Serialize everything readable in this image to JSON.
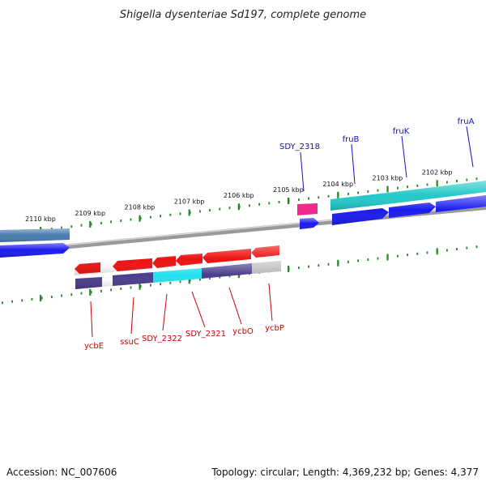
{
  "title": "Shigella dysenteriae Sd197, complete genome",
  "footer": {
    "accession": "Accession: NC_007606",
    "summary": "Topology: circular; Length: 4,369,232 bp; Genes: 4,377"
  },
  "colors": {
    "background": "#ffffff",
    "backbone": "#8a8a8a",
    "tick": "#1f8a1f",
    "forward_label": "#1010c0",
    "reverse_label": "#cc0000"
  },
  "ticks": [
    {
      "kbp": 2110,
      "label": "2110 kbp"
    },
    {
      "kbp": 2109,
      "label": "2109 kbp"
    },
    {
      "kbp": 2108,
      "label": "2108 kbp"
    },
    {
      "kbp": 2107,
      "label": "2107 kbp"
    },
    {
      "kbp": 2106,
      "label": "2106 kbp"
    },
    {
      "kbp": 2105,
      "label": "2105 kbp"
    },
    {
      "kbp": 2104,
      "label": "2104 kbp"
    },
    {
      "kbp": 2103,
      "label": "2103 kbp"
    },
    {
      "kbp": 2102,
      "label": "2102 kbp"
    }
  ],
  "forward_genes": [
    {
      "label": "",
      "cds": "#1a1aee",
      "outer": "#4a7ab0"
    },
    {
      "label": "SDY_2318",
      "cds": "#1a1aee",
      "outer": "#ee2a8a"
    },
    {
      "label": "fruB",
      "cds": "#1a1aee",
      "outer": "#22c8c8"
    },
    {
      "label": "fruK",
      "cds": "#1a1aee",
      "outer": "#22c8c8"
    },
    {
      "label": "fruA",
      "cds": "#1a1aee",
      "outer": "#22c8c8"
    }
  ],
  "reverse_genes": [
    {
      "label": "ycbE",
      "cds": "#ee1111",
      "outer": "#4a3c8c"
    },
    {
      "label": "ssuC",
      "cds": "#ee1111",
      "outer": "#4a3c8c"
    },
    {
      "label": "SDY_2322",
      "cds": "#ee1111",
      "outer": "#22e0f0"
    },
    {
      "label": "SDY_2321",
      "cds": "#ee1111",
      "outer": "#22e0f0"
    },
    {
      "label": "ycbO",
      "cds": "#ee1111",
      "outer": "#4a3c8c"
    },
    {
      "label": "ycbP",
      "cds": "#ee1111",
      "outer": "#b8b8b8"
    }
  ]
}
